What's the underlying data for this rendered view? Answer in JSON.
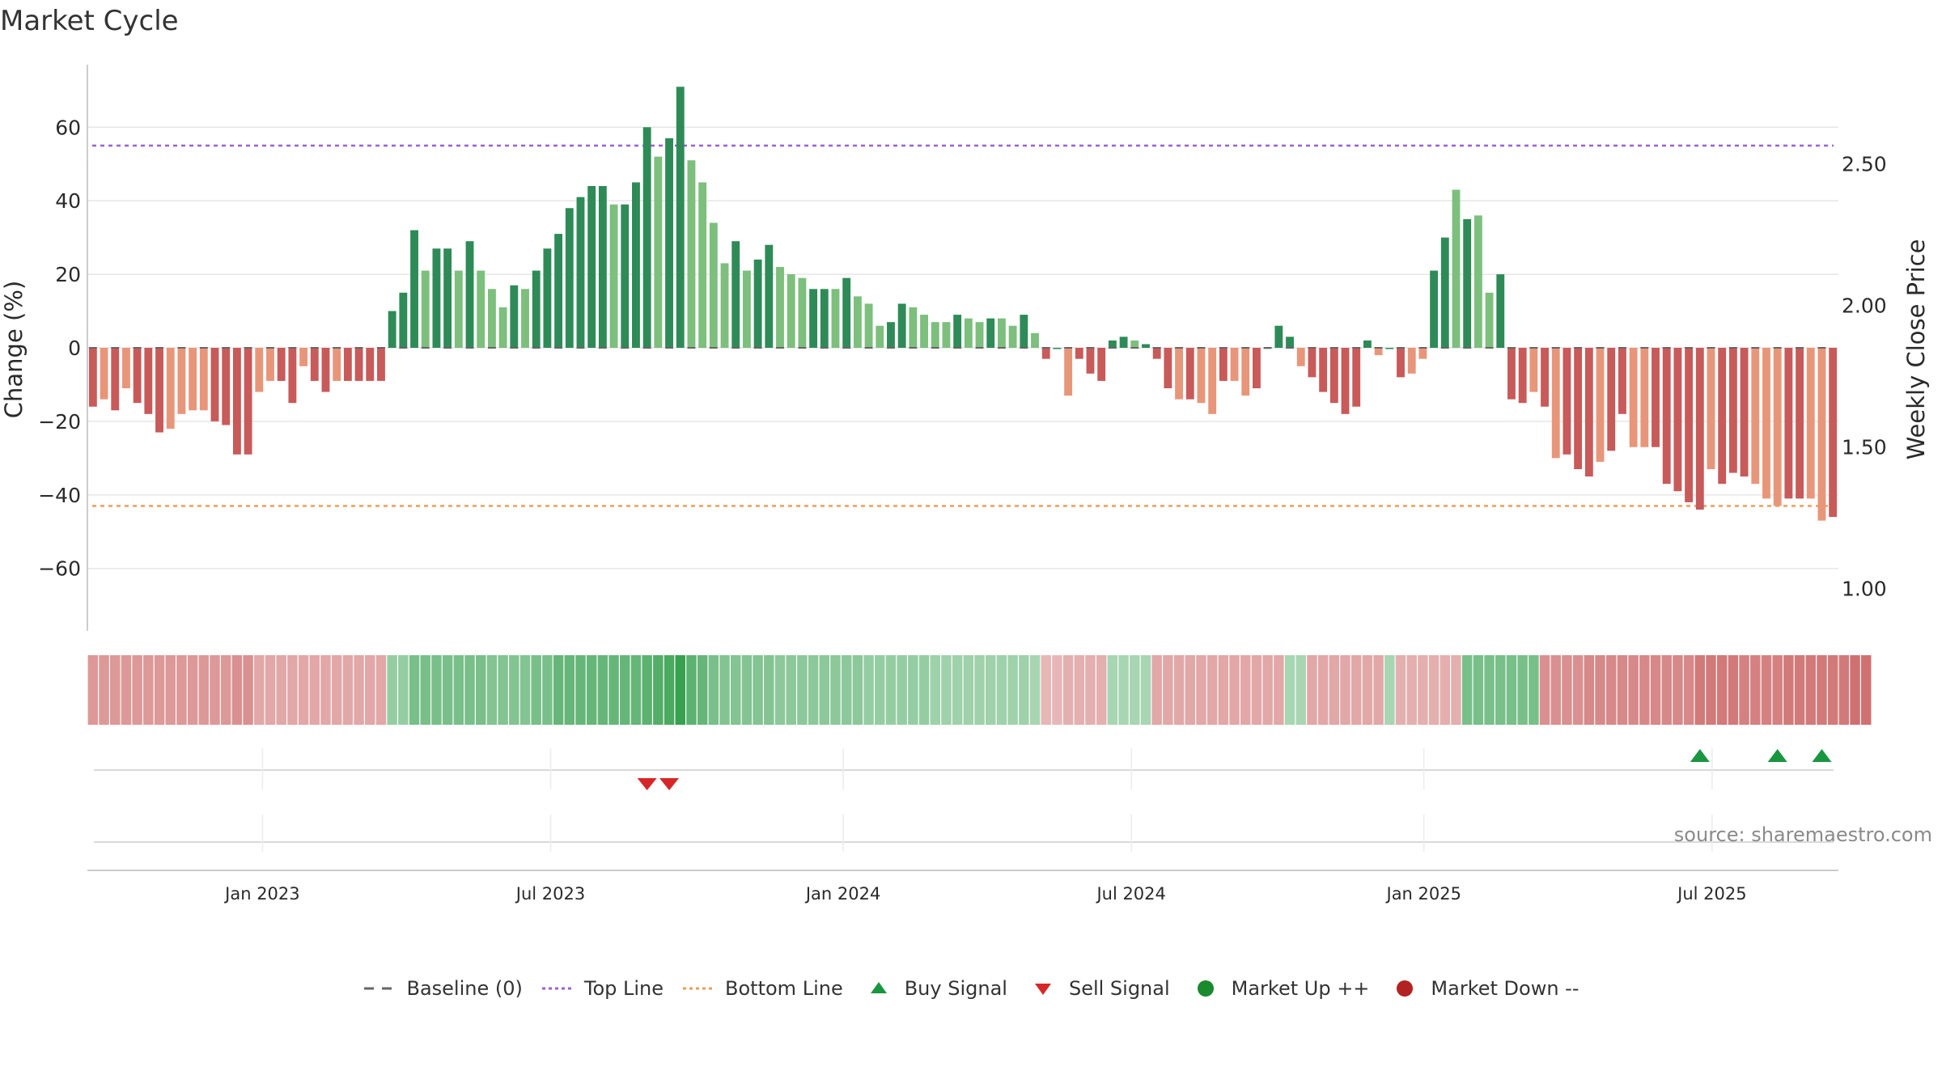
{
  "title": "Market Cycle",
  "source": "source: sharemaestro.com",
  "colors": {
    "up_dark": "#2e8b57",
    "up_light": "#7dbf7d",
    "down_dark": "#c85a5a",
    "down_light": "#e8967a",
    "top_line": "#9b5fd6",
    "bottom_line": "#e8a05a",
    "grid": "#e6e6e6",
    "buy": "#1a9641",
    "sell": "#d62728"
  },
  "chart_data": {
    "type": "bar",
    "title": "Market Cycle",
    "ylabel": "Change (%)",
    "y2label": "Weekly Close Price",
    "ylim": [
      -77,
      77
    ],
    "yticks": [
      60,
      40,
      20,
      0,
      -20,
      -40,
      -60
    ],
    "ytick_labels": [
      "60",
      "40",
      "20",
      "0",
      "−20",
      "−40",
      "−60"
    ],
    "y2lim": [
      0.85,
      2.85
    ],
    "y2ticks": [
      2.5,
      2.0,
      1.5,
      1.0
    ],
    "y2tick_labels": [
      "2.50",
      "2.00",
      "1.50",
      "1.00"
    ],
    "top_line": 55,
    "bottom_line": -43,
    "x_start_date": "2022-09-26",
    "week_step": 1,
    "x_ticks": [
      {
        "label": "Jan 2023",
        "week": 15.3
      },
      {
        "label": "Jul 2023",
        "week": 41.3
      },
      {
        "label": "Jan 2024",
        "week": 67.7
      },
      {
        "label": "Jul 2024",
        "week": 93.7
      },
      {
        "label": "Jan 2025",
        "week": 120.1
      },
      {
        "label": "Jul 2025",
        "week": 146.1
      }
    ],
    "values": [
      -16,
      -14,
      -17,
      -11,
      -15,
      -18,
      -23,
      -22,
      -18,
      -17,
      -17,
      -20,
      -21,
      -29,
      -29,
      -12,
      -9,
      -9,
      -15,
      -5,
      -9,
      -12,
      -9,
      -9,
      -9,
      -9,
      -9,
      10,
      15,
      32,
      21,
      27,
      27,
      21,
      29,
      21,
      16,
      11,
      17,
      16,
      21,
      27,
      31,
      38,
      41,
      44,
      44,
      39,
      39,
      45,
      60,
      52,
      57,
      71,
      51,
      45,
      34,
      23,
      29,
      21,
      24,
      28,
      22,
      20,
      19,
      16,
      16,
      16,
      19,
      14,
      12,
      6,
      7,
      12,
      11,
      9,
      7,
      7,
      9,
      8,
      7,
      8,
      8,
      6,
      9,
      4,
      -3,
      0,
      -13,
      -3,
      -7,
      -9,
      2,
      3,
      2,
      1,
      -3,
      -11,
      -14,
      -14,
      -15,
      -18,
      -9,
      -9,
      -13,
      -11,
      0,
      6,
      3,
      -5,
      -8,
      -12,
      -15,
      -18,
      -16,
      2,
      -2,
      0,
      -8,
      -7,
      -3,
      21,
      30,
      43,
      35,
      36,
      15,
      20,
      -14,
      -15,
      -12,
      -16,
      -30,
      -29,
      -33,
      -35,
      -31,
      -28,
      -18,
      -27,
      -27,
      -27,
      -37,
      -39,
      -42,
      -44,
      -33,
      -37,
      -34,
      -35,
      -37,
      -41,
      -43,
      -41,
      -41,
      -41,
      -47,
      -46
    ],
    "shade": [
      "d",
      "l",
      "d",
      "l",
      "d",
      "d",
      "d",
      "l",
      "l",
      "l",
      "l",
      "d",
      "d",
      "d",
      "d",
      "l",
      "l",
      "d",
      "d",
      "l",
      "d",
      "d",
      "l",
      "d",
      "d",
      "d",
      "d",
      "d",
      "d",
      "d",
      "l",
      "d",
      "d",
      "l",
      "d",
      "l",
      "l",
      "l",
      "d",
      "l",
      "d",
      "d",
      "d",
      "d",
      "d",
      "d",
      "d",
      "l",
      "d",
      "d",
      "d",
      "l",
      "d",
      "d",
      "l",
      "l",
      "l",
      "l",
      "d",
      "l",
      "d",
      "d",
      "l",
      "l",
      "l",
      "d",
      "d",
      "l",
      "d",
      "l",
      "l",
      "l",
      "d",
      "d",
      "l",
      "l",
      "l",
      "l",
      "d",
      "l",
      "l",
      "d",
      "l",
      "l",
      "d",
      "l",
      "d",
      "d",
      "l",
      "d",
      "d",
      "d",
      "d",
      "d",
      "l",
      "d",
      "d",
      "d",
      "l",
      "d",
      "l",
      "l",
      "d",
      "l",
      "l",
      "d",
      "l",
      "d",
      "d",
      "l",
      "d",
      "d",
      "d",
      "d",
      "d",
      "d",
      "l",
      "d",
      "d",
      "l",
      "l",
      "d",
      "d",
      "l",
      "d",
      "l",
      "l",
      "d",
      "d",
      "d",
      "l",
      "d",
      "l",
      "d",
      "d",
      "d",
      "l",
      "d",
      "d",
      "l",
      "l",
      "d",
      "d",
      "d",
      "d",
      "d",
      "l",
      "d",
      "d",
      "d",
      "l",
      "l",
      "l",
      "d",
      "d",
      "l",
      "l",
      "d",
      "d",
      "l"
    ],
    "heat_strip": [
      -40,
      -40,
      -40,
      -40,
      -40,
      -40,
      -40,
      -40,
      -40,
      -40,
      -40,
      -40,
      -40,
      -45,
      -45,
      -30,
      -30,
      -30,
      -30,
      -30,
      -30,
      -30,
      -30,
      -30,
      -30,
      -30,
      -30,
      30,
      30,
      45,
      45,
      45,
      45,
      45,
      45,
      45,
      40,
      40,
      40,
      40,
      45,
      45,
      55,
      55,
      55,
      55,
      55,
      55,
      55,
      55,
      60,
      65,
      70,
      80,
      60,
      55,
      45,
      40,
      40,
      40,
      40,
      40,
      35,
      35,
      35,
      35,
      35,
      35,
      35,
      35,
      30,
      30,
      30,
      30,
      30,
      30,
      25,
      25,
      25,
      25,
      25,
      25,
      25,
      25,
      25,
      20,
      -20,
      -20,
      -25,
      -25,
      -25,
      -25,
      20,
      20,
      20,
      20,
      -30,
      -30,
      -30,
      -30,
      -30,
      -30,
      -30,
      -30,
      -30,
      -30,
      -30,
      -30,
      20,
      20,
      -30,
      -30,
      -30,
      -30,
      -30,
      -30,
      -30,
      20,
      -25,
      -25,
      -25,
      -25,
      -25,
      -25,
      45,
      45,
      45,
      45,
      45,
      45,
      45,
      -45,
      -45,
      -45,
      -45,
      -50,
      -50,
      -50,
      -50,
      -50,
      -50,
      -50,
      -50,
      -50,
      -50,
      -60,
      -60,
      -60,
      -60,
      -55,
      -55,
      -55,
      -55,
      -60,
      -60,
      -60,
      -60,
      -60,
      -60,
      -65,
      -65
    ],
    "buy_signals": [
      145,
      152,
      156
    ],
    "sell_signals": [
      50,
      52
    ],
    "legend": [
      {
        "label": "Baseline (0)",
        "symbol": "dash-line",
        "color": "#666666"
      },
      {
        "label": "Top Line",
        "symbol": "dot-line",
        "color": "#9b5fd6"
      },
      {
        "label": "Bottom Line",
        "symbol": "dot-line",
        "color": "#e8a05a"
      },
      {
        "label": "Buy Signal",
        "symbol": "triangle-up",
        "color": "#1a9641"
      },
      {
        "label": "Sell Signal",
        "symbol": "triangle-down",
        "color": "#d62728"
      },
      {
        "label": "Market Up ++",
        "symbol": "circle",
        "color": "#1a8a2e"
      },
      {
        "label": "Market Down --",
        "symbol": "circle",
        "color": "#b22222"
      }
    ]
  }
}
